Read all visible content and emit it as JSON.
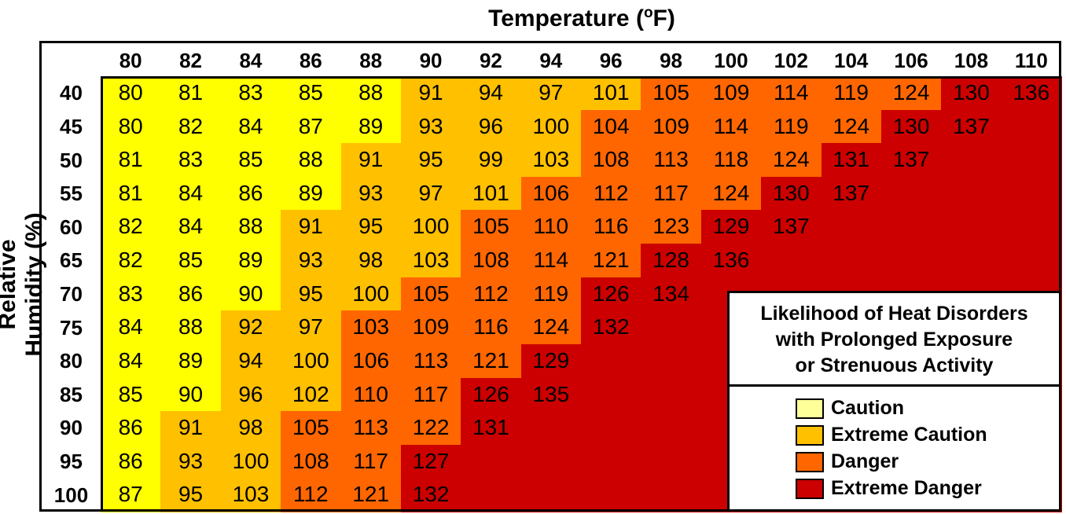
{
  "chart_data": {
    "type": "heatmap",
    "title": "Temperature (",
    "title_unit_sup": "o",
    "title_unit_tail": "F)",
    "ylabel": "Relative Humidity (%)",
    "x": [
      "80",
      "82",
      "84",
      "86",
      "88",
      "90",
      "92",
      "94",
      "96",
      "98",
      "100",
      "102",
      "104",
      "106",
      "108",
      "110"
    ],
    "y": [
      "40",
      "45",
      "50",
      "55",
      "60",
      "65",
      "70",
      "75",
      "80",
      "85",
      "90",
      "95",
      "100"
    ],
    "values": [
      [
        80,
        81,
        83,
        85,
        88,
        91,
        94,
        97,
        101,
        105,
        109,
        114,
        119,
        124,
        130,
        136
      ],
      [
        80,
        82,
        84,
        87,
        89,
        93,
        96,
        100,
        104,
        109,
        114,
        119,
        124,
        130,
        137,
        null
      ],
      [
        81,
        83,
        85,
        88,
        91,
        95,
        99,
        103,
        108,
        113,
        118,
        124,
        131,
        137,
        null,
        null
      ],
      [
        81,
        84,
        86,
        89,
        93,
        97,
        101,
        106,
        112,
        117,
        124,
        130,
        137,
        null,
        null,
        null
      ],
      [
        82,
        84,
        88,
        91,
        95,
        100,
        105,
        110,
        116,
        123,
        129,
        137,
        null,
        null,
        null,
        null
      ],
      [
        82,
        85,
        89,
        93,
        98,
        103,
        108,
        114,
        121,
        128,
        136,
        null,
        null,
        null,
        null,
        null
      ],
      [
        83,
        86,
        90,
        95,
        100,
        105,
        112,
        119,
        126,
        134,
        null,
        null,
        null,
        null,
        null,
        null
      ],
      [
        84,
        88,
        92,
        97,
        103,
        109,
        116,
        124,
        132,
        null,
        null,
        null,
        null,
        null,
        null,
        null
      ],
      [
        84,
        89,
        94,
        100,
        106,
        113,
        121,
        129,
        null,
        null,
        null,
        null,
        null,
        null,
        null,
        null
      ],
      [
        85,
        90,
        96,
        102,
        110,
        117,
        126,
        135,
        null,
        null,
        null,
        null,
        null,
        null,
        null,
        null
      ],
      [
        86,
        91,
        98,
        105,
        113,
        122,
        131,
        null,
        null,
        null,
        null,
        null,
        null,
        null,
        null,
        null
      ],
      [
        86,
        93,
        100,
        108,
        117,
        127,
        null,
        null,
        null,
        null,
        null,
        null,
        null,
        null,
        null,
        null
      ],
      [
        87,
        95,
        103,
        112,
        121,
        132,
        null,
        null,
        null,
        null,
        null,
        null,
        null,
        null,
        null,
        null
      ]
    ],
    "categories": [
      [
        0,
        0,
        0,
        0,
        0,
        1,
        1,
        1,
        1,
        2,
        2,
        2,
        2,
        2,
        3,
        3
      ],
      [
        0,
        0,
        0,
        0,
        0,
        1,
        1,
        1,
        2,
        2,
        2,
        2,
        2,
        3,
        3,
        3
      ],
      [
        0,
        0,
        0,
        0,
        1,
        1,
        1,
        1,
        2,
        2,
        2,
        2,
        3,
        3,
        3,
        3
      ],
      [
        0,
        0,
        0,
        0,
        1,
        1,
        1,
        2,
        2,
        2,
        2,
        3,
        3,
        3,
        3,
        3
      ],
      [
        0,
        0,
        0,
        1,
        1,
        1,
        2,
        2,
        2,
        2,
        3,
        3,
        3,
        3,
        3,
        3
      ],
      [
        0,
        0,
        0,
        1,
        1,
        1,
        2,
        2,
        2,
        3,
        3,
        3,
        3,
        3,
        3,
        3
      ],
      [
        0,
        0,
        0,
        1,
        1,
        2,
        2,
        2,
        3,
        3,
        3,
        3,
        3,
        3,
        3,
        3
      ],
      [
        0,
        0,
        1,
        1,
        2,
        2,
        2,
        2,
        3,
        3,
        3,
        3,
        3,
        3,
        3,
        3
      ],
      [
        0,
        0,
        1,
        1,
        2,
        2,
        2,
        3,
        3,
        3,
        3,
        3,
        3,
        3,
        3,
        3
      ],
      [
        0,
        0,
        1,
        1,
        2,
        2,
        3,
        3,
        3,
        3,
        3,
        3,
        3,
        3,
        3,
        3
      ],
      [
        0,
        1,
        1,
        2,
        2,
        2,
        3,
        3,
        3,
        3,
        3,
        3,
        3,
        3,
        3,
        3
      ],
      [
        0,
        1,
        1,
        2,
        2,
        3,
        3,
        3,
        3,
        3,
        3,
        3,
        3,
        3,
        3,
        3
      ],
      [
        0,
        1,
        1,
        2,
        2,
        3,
        3,
        3,
        3,
        3,
        3,
        3,
        3,
        3,
        3,
        3
      ]
    ],
    "legend": {
      "title_lines": [
        "Likelihood of Heat Disorders",
        "with Prolonged Exposure",
        "or Strenuous Activity"
      ],
      "placement": "bottom-right",
      "items": [
        {
          "label": "Caution",
          "color": "#ffff00",
          "swatch": "#ffff99"
        },
        {
          "label": "Extreme Caution",
          "color": "#ffc000",
          "swatch": "#ffc000"
        },
        {
          "label": "Danger",
          "color": "#ff6600",
          "swatch": "#ff6600"
        },
        {
          "label": "Extreme Danger",
          "color": "#cc0000",
          "swatch": "#cc0000"
        }
      ]
    },
    "grid": true
  }
}
